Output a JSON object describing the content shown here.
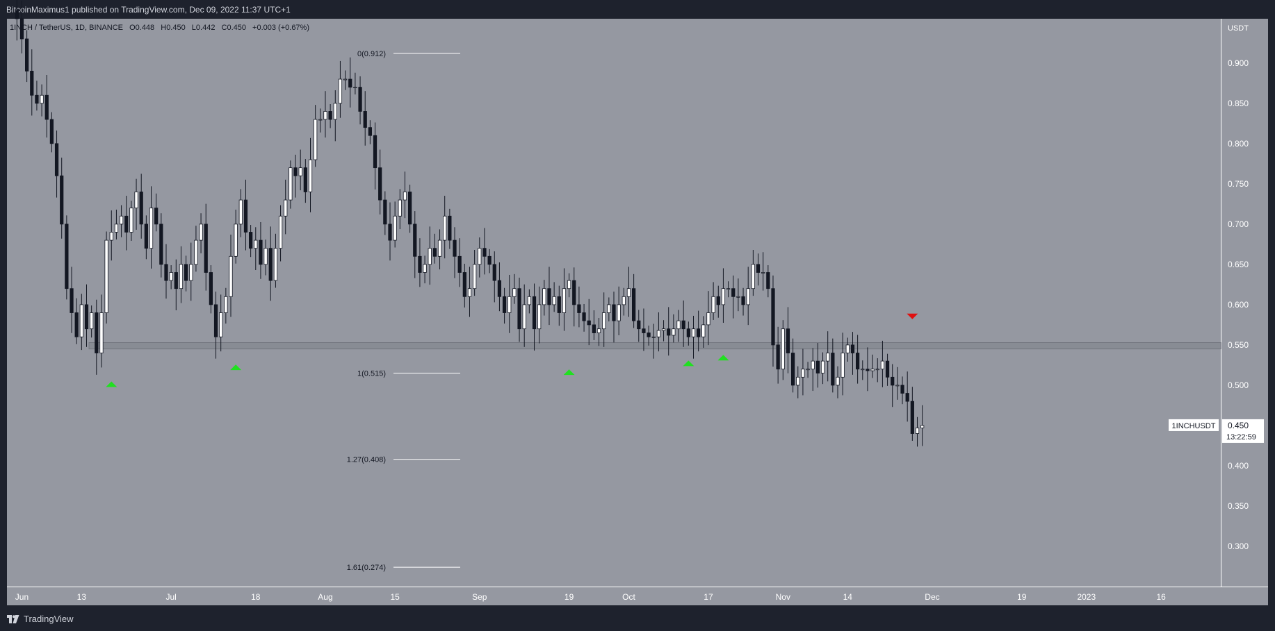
{
  "header": {
    "published": "BitcoinMaximus1 published on TradingView.com, Dec 09, 2022 11:37 UTC+1"
  },
  "legend": {
    "symbol": "1INCH / TetherUS, 1D, BINANCE",
    "open_label": "O",
    "open": "0.448",
    "high_label": "H",
    "high": "0.450",
    "low_label": "L",
    "low": "0.442",
    "close_label": "C",
    "close": "0.450",
    "change": "+0.003 (+0.67%)"
  },
  "footer": {
    "brand": "TradingView"
  },
  "colors": {
    "plot_bg": "#9598a1",
    "frame": "#1e222d",
    "axis_bg": "#ffffff",
    "up_candle": "#ffffff",
    "down_candle": "#131722",
    "support_band": "#80838c",
    "support_marker": "#20e020",
    "resistance_marker": "#e01010"
  },
  "chart_data": {
    "type": "candlestick",
    "interval": "1D",
    "exchange": "BINANCE",
    "pair": "1INCH / TetherUS",
    "y_axis_unit": "USDT",
    "ylim": [
      0.25,
      0.955
    ],
    "y_ticks": [
      "0.900",
      "0.850",
      "0.800",
      "0.750",
      "0.700",
      "0.650",
      "0.600",
      "0.550",
      "0.500",
      "0.450",
      "0.400",
      "0.350",
      "0.300"
    ],
    "x_ticks": [
      {
        "label": "Jun",
        "date": "2022-06-01"
      },
      {
        "label": "13",
        "date": "2022-06-13"
      },
      {
        "label": "Jul",
        "date": "2022-07-01"
      },
      {
        "label": "18",
        "date": "2022-07-18"
      },
      {
        "label": "Aug",
        "date": "2022-08-01"
      },
      {
        "label": "15",
        "date": "2022-08-15"
      },
      {
        "label": "Sep",
        "date": "2022-09-01"
      },
      {
        "label": "19",
        "date": "2022-09-19"
      },
      {
        "label": "Oct",
        "date": "2022-10-01"
      },
      {
        "label": "17",
        "date": "2022-10-17"
      },
      {
        "label": "Nov",
        "date": "2022-11-01"
      },
      {
        "label": "14",
        "date": "2022-11-14"
      },
      {
        "label": "Dec",
        "date": "2022-12-01"
      },
      {
        "label": "19",
        "date": "2022-12-19"
      },
      {
        "label": "2023",
        "date": "2023-01-01"
      },
      {
        "label": "16",
        "date": "2023-01-16"
      }
    ],
    "x_range": [
      "2022-05-29",
      "2023-01-28"
    ],
    "first_candle_date": "2022-05-31",
    "closes": [
      0.955,
      0.93,
      0.89,
      0.86,
      0.85,
      0.86,
      0.83,
      0.8,
      0.76,
      0.7,
      0.62,
      0.59,
      0.56,
      0.6,
      0.57,
      0.59,
      0.54,
      0.59,
      0.68,
      0.69,
      0.7,
      0.71,
      0.69,
      0.72,
      0.74,
      0.7,
      0.67,
      0.72,
      0.7,
      0.65,
      0.63,
      0.64,
      0.62,
      0.65,
      0.63,
      0.65,
      0.68,
      0.7,
      0.64,
      0.6,
      0.56,
      0.59,
      0.61,
      0.66,
      0.7,
      0.73,
      0.69,
      0.67,
      0.68,
      0.65,
      0.67,
      0.63,
      0.67,
      0.71,
      0.73,
      0.77,
      0.76,
      0.77,
      0.74,
      0.78,
      0.83,
      0.83,
      0.84,
      0.83,
      0.85,
      0.88,
      0.88,
      0.87,
      0.87,
      0.84,
      0.82,
      0.81,
      0.77,
      0.73,
      0.7,
      0.68,
      0.71,
      0.73,
      0.74,
      0.7,
      0.66,
      0.64,
      0.65,
      0.67,
      0.66,
      0.68,
      0.71,
      0.68,
      0.66,
      0.64,
      0.61,
      0.62,
      0.65,
      0.67,
      0.66,
      0.65,
      0.63,
      0.61,
      0.59,
      0.61,
      0.62,
      0.57,
      0.6,
      0.61,
      0.57,
      0.6,
      0.62,
      0.6,
      0.61,
      0.59,
      0.62,
      0.63,
      0.6,
      0.59,
      0.58,
      0.575,
      0.565,
      0.57,
      0.59,
      0.6,
      0.58,
      0.6,
      0.61,
      0.62,
      0.58,
      0.57,
      0.565,
      0.56,
      0.56,
      0.568,
      0.57,
      0.562,
      0.57,
      0.58,
      0.57,
      0.56,
      0.57,
      0.56,
      0.575,
      0.59,
      0.61,
      0.6,
      0.62,
      0.62,
      0.61,
      0.61,
      0.6,
      0.62,
      0.65,
      0.64,
      0.64,
      0.62,
      0.55,
      0.52,
      0.57,
      0.54,
      0.5,
      0.51,
      0.52,
      0.52,
      0.53,
      0.515,
      0.53,
      0.54,
      0.5,
      0.51,
      0.54,
      0.55,
      0.54,
      0.52,
      0.52,
      0.518,
      0.52,
      0.52,
      0.53,
      0.51,
      0.5,
      0.5,
      0.49,
      0.48,
      0.44,
      0.447,
      0.45
    ],
    "last_price": "0.450",
    "last_price_symbol": "1INCHUSDT",
    "countdown": "13:22:59",
    "support_zone": {
      "low": 0.545,
      "high": 0.553
    },
    "fibonacci_levels": [
      {
        "label": "0(0.912)",
        "ratio": 0,
        "price": 0.912
      },
      {
        "label": "1(0.515)",
        "ratio": 1,
        "price": 0.515
      },
      {
        "label": "1.27(0.408)",
        "ratio": 1.27,
        "price": 0.408
      },
      {
        "label": "1.61(0.274)",
        "ratio": 1.61,
        "price": 0.274
      }
    ],
    "support_markers": [
      {
        "date": "2022-06-19",
        "price": 0.515
      },
      {
        "date": "2022-07-14",
        "price": 0.536
      },
      {
        "date": "2022-09-19",
        "price": 0.53
      },
      {
        "date": "2022-10-13",
        "price": 0.541
      },
      {
        "date": "2022-10-20",
        "price": 0.548
      }
    ],
    "resistance_markers": [
      {
        "date": "2022-11-27",
        "price": 0.57
      }
    ]
  }
}
